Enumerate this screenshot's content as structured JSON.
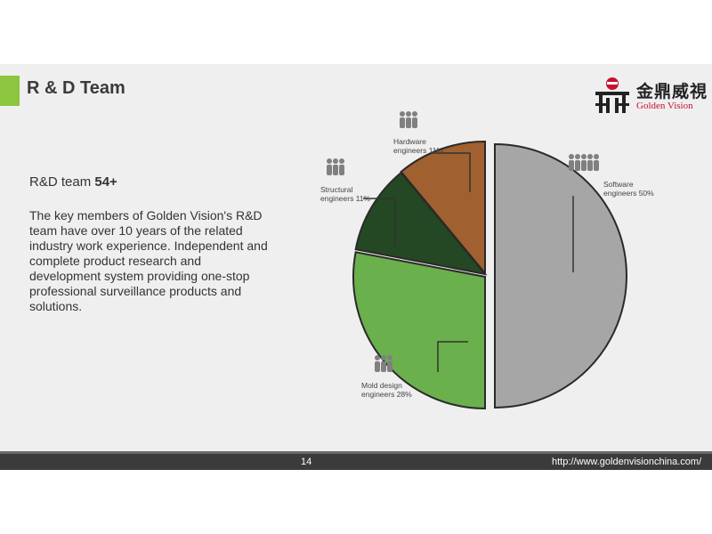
{
  "slide": {
    "title": "R & D Team",
    "headline_prefix": "R&D team ",
    "headline_count": "54+",
    "description": "The key members of Golden Vision's R&D team have over 10 years of the related industry work experience. Independent and complete product research and development system providing one-stop professional surveillance products and solutions."
  },
  "logo": {
    "chinese": "金鼎威視",
    "english": "Golden Vision"
  },
  "footer": {
    "page_number": "14",
    "url": "http://www.goldenvisionchina.com/"
  },
  "colors": {
    "accent_green": "#8cc63f",
    "software": "#a6a6a6",
    "mold": "#6ab04c",
    "structural": "#234823",
    "hardware": "#a0602f"
  },
  "icons": [
    "people-icon"
  ],
  "chart_data": {
    "type": "pie",
    "slices": [
      {
        "label_line1": "Software",
        "label_line2": "engineers 50%",
        "value": 50,
        "color": "#a6a6a6"
      },
      {
        "label_line1": "Mold design",
        "label_line2": "engineers 28%",
        "value": 28,
        "color": "#6ab04c"
      },
      {
        "label_line1": "Structural",
        "label_line2": "engineers 11%",
        "value": 11,
        "color": "#234823"
      },
      {
        "label_line1": "Hardware",
        "label_line2": "engineers 11%",
        "value": 11,
        "color": "#a0602f"
      }
    ]
  }
}
